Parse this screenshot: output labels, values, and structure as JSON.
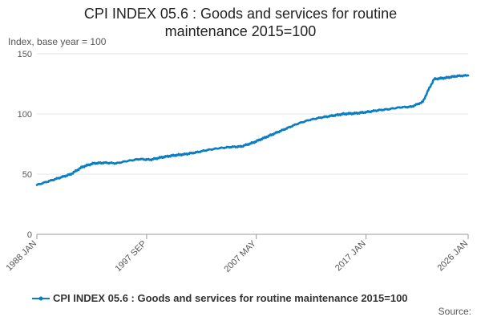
{
  "chart_data": {
    "type": "line",
    "title_line1": "CPI INDEX 05.6 : Goods and services for routine",
    "title_line2": "maintenance 2015=100",
    "ylabel": "Index, base year = 100",
    "ylim": [
      0,
      150
    ],
    "yticks": [
      "0",
      "50",
      "100",
      "150"
    ],
    "xticks": [
      "1988 JAN",
      "1997 SEP",
      "2007 MAY",
      "2017 JAN",
      "2026 JAN"
    ],
    "x_range": [
      1988.0,
      2026.0
    ],
    "xtick_positions": [
      1988.0,
      1997.67,
      2007.33,
      2017.0,
      2026.0
    ],
    "series": [
      {
        "name": "CPI INDEX 05.6 : Goods and services for routine maintenance 2015=100",
        "color": "#0a7ec2",
        "x": [
          1988.0,
          1989.0,
          1990.0,
          1991.0,
          1991.5,
          1992.0,
          1993.0,
          1994.0,
          1995.0,
          1996.0,
          1997.0,
          1998.0,
          1999.0,
          2000.0,
          2001.0,
          2002.0,
          2003.0,
          2004.0,
          2005.0,
          2006.0,
          2007.0,
          2008.0,
          2009.0,
          2010.0,
          2011.0,
          2012.0,
          2013.0,
          2014.0,
          2015.0,
          2016.0,
          2017.0,
          2018.0,
          2019.0,
          2020.0,
          2021.0,
          2022.0,
          2022.5,
          2023.0,
          2024.0,
          2025.0,
          2026.0
        ],
        "values": [
          41,
          44,
          47,
          50,
          53,
          56,
          59,
          59.5,
          59,
          61,
          62.5,
          62,
          64,
          65.5,
          66.5,
          68,
          70,
          71.5,
          72.5,
          73,
          76,
          80,
          84,
          88,
          92,
          95,
          97,
          98.5,
          100,
          100.5,
          101.5,
          103,
          104,
          105.5,
          106,
          110,
          120,
          129,
          130,
          131.5,
          132
        ]
      }
    ]
  },
  "legend_label": "CPI INDEX 05.6 : Goods and services for routine maintenance 2015=100",
  "source_label": "Source:"
}
